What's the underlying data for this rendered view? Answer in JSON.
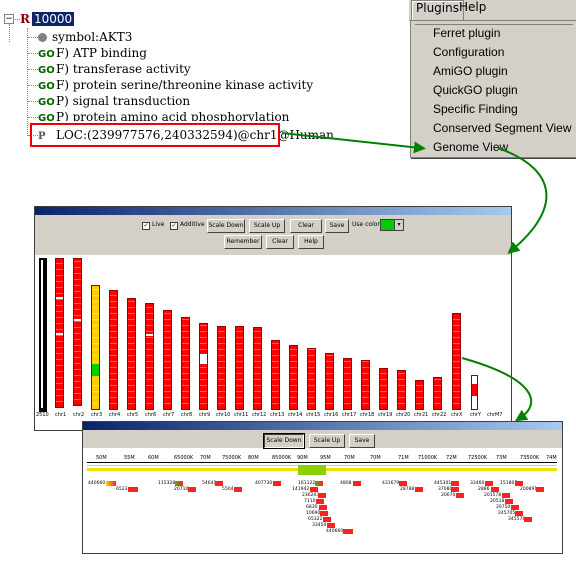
{
  "tree": {
    "expander": "−",
    "root_letter": "R",
    "root_id": "10000",
    "items": [
      {
        "tag": "",
        "text": "symbol:AKT3"
      },
      {
        "tag": "GO",
        "text": "F) ATP binding"
      },
      {
        "tag": "GO",
        "text": "F) transferase activity"
      },
      {
        "tag": "GO",
        "text": "F) protein serine/threonine kinase activity"
      },
      {
        "tag": "GO",
        "text": "P) signal transduction"
      },
      {
        "tag": "GO",
        "text": "P) protein amino acid phosphorylation"
      },
      {
        "tag": "P",
        "text": "LOC:(239977576,240332594)@chr1@Human"
      }
    ]
  },
  "menubar": {
    "plugins": "Plugins",
    "help": "Help"
  },
  "plugins_menu": [
    "Ferret plugin",
    "Configuration",
    "AmiGO plugin",
    "QuickGO plugin",
    "Specific Finding",
    "Conserved Segment View",
    "Genome View"
  ],
  "genome_window": {
    "toolbar": {
      "live": "Live",
      "additive": "Additive",
      "scale_down": "Scale Down",
      "scale_up": "Scale Up",
      "clear": "Clear",
      "save": "Save",
      "use_color": "Use color:",
      "remember": "Remember",
      "clear2": "Clear",
      "help": "Help"
    },
    "chromosomes": [
      "2510",
      "chr1",
      "chr2",
      "chr3",
      "chr4",
      "chr5",
      "chr6",
      "chr7",
      "chr8",
      "chr9",
      "chr10",
      "chr11",
      "chr12",
      "chr13",
      "chr14",
      "chr15",
      "chr16",
      "chr17",
      "chr18",
      "chr19",
      "chr20",
      "chr21",
      "chr22",
      "chrX",
      "chrY",
      "chrM7"
    ]
  },
  "detail_window": {
    "toolbar": {
      "scale_down": "Scale Down",
      "scale_up": "Scale Up",
      "save": "Save"
    },
    "ruler": [
      "50M",
      "55M",
      "60M",
      "65000K",
      "70M",
      "75000K",
      "80M",
      "85000K",
      "90M",
      "95M",
      "70M",
      "70M",
      "71M",
      "71000K",
      "72M",
      "72500K",
      "73M",
      "73500K",
      "74M"
    ],
    "features": [
      "440660",
      "6523",
      "115328",
      "20710",
      "54641",
      "5504",
      "407730",
      "161122",
      "141942",
      "236203",
      "7110",
      "6830",
      "10690",
      "65322",
      "33450",
      "440660",
      "4808",
      "431679",
      "28788",
      "445301",
      "37080",
      "20670",
      "33460",
      "2886",
      "201578",
      "20518",
      "29750",
      "245705",
      "151807",
      "200891",
      "345578"
    ]
  },
  "colors": {
    "highlight": "#e00000",
    "arrow": "#008000",
    "chromosome": "#ff0000",
    "selected": "#0a246a",
    "band": "#00cc00"
  }
}
